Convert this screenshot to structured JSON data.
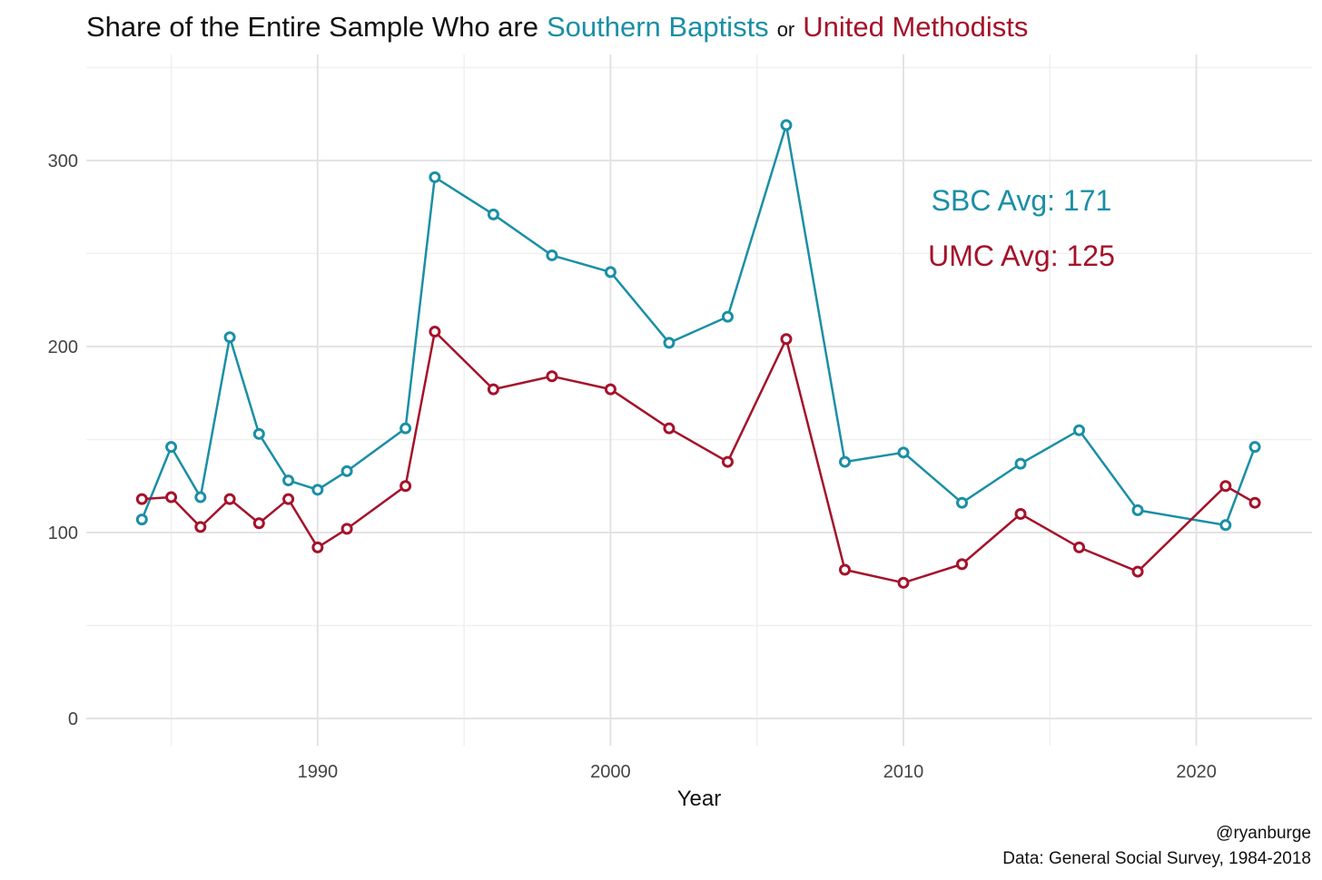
{
  "chart_data": {
    "type": "line",
    "title_parts": [
      {
        "text": "Share of the Entire Sample Who are",
        "color": "#111111"
      },
      {
        "text": "Southern Baptists",
        "color": "#1a8fa6"
      },
      {
        "text": "or",
        "color": "#111111"
      },
      {
        "text": "United Methodists",
        "color": "#a5122a"
      }
    ],
    "x_label": "Year",
    "caption": [
      "@ryanburge",
      "Data: General Social Survey, 1984-2018"
    ],
    "annotations": [
      {
        "text": "SBC Avg: 171",
        "color": "#1a8fa6"
      },
      {
        "text": "UMC Avg: 125",
        "color": "#a5122a"
      }
    ],
    "x": [
      1984,
      1985,
      1986,
      1987,
      1988,
      1989,
      1990,
      1991,
      1993,
      1994,
      1996,
      1998,
      2000,
      2002,
      2004,
      2006,
      2008,
      2010,
      2012,
      2014,
      2016,
      2018,
      2021,
      2022
    ],
    "series": [
      {
        "name": "Southern Baptists",
        "color": "#1a8fa6",
        "values": [
          107,
          146,
          119,
          205,
          153,
          128,
          123,
          133,
          156,
          291,
          271,
          249,
          240,
          202,
          216,
          319,
          138,
          143,
          116,
          137,
          155,
          112,
          104,
          146
        ]
      },
      {
        "name": "United Methodists",
        "color": "#a5122a",
        "values": [
          118,
          119,
          103,
          118,
          105,
          118,
          92,
          102,
          125,
          208,
          177,
          184,
          177,
          156,
          138,
          204,
          80,
          73,
          83,
          110,
          92,
          79,
          125,
          116
        ]
      }
    ],
    "xlim": [
      1982.1,
      2023.95
    ],
    "ylim": [
      -14.6,
      357
    ],
    "xticks": [
      1990,
      2000,
      2010,
      2020
    ],
    "yticks": [
      0,
      100,
      200,
      300
    ],
    "grid": true
  }
}
